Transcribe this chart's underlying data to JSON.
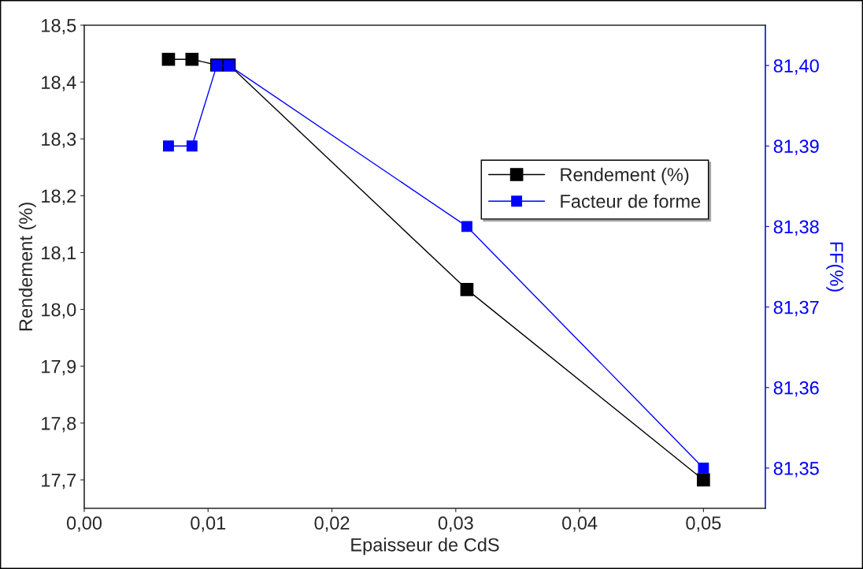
{
  "chart_data": {
    "type": "line",
    "xlabel": "Epaisseur de CdS",
    "ylabel": "Rendement (%)",
    "y2label": "FF(%)",
    "x": [
      0.0068,
      0.0087,
      0.0107,
      0.0117,
      0.0309,
      0.05
    ],
    "series": [
      {
        "name": "Rendement (%)",
        "color": "#000000",
        "values": [
          18.44,
          18.44,
          18.43,
          18.43,
          18.035,
          17.7
        ]
      },
      {
        "name": "Facteur de forme",
        "color": "#0000ff",
        "axis": "y2",
        "values": [
          81.39,
          81.39,
          81.4,
          81.4,
          81.38,
          81.35
        ]
      }
    ],
    "xlim": [
      0,
      0.055
    ],
    "xticks": [
      {
        "value": 0,
        "label": "0,00"
      },
      {
        "value": 0.01,
        "label": "0,01"
      },
      {
        "value": 0.02,
        "label": "0,02"
      },
      {
        "value": 0.03,
        "label": "0,03"
      },
      {
        "value": 0.04,
        "label": "0,04"
      },
      {
        "value": 0.05,
        "label": "0,05"
      }
    ],
    "ylim": [
      17.65,
      18.5
    ],
    "yticks": [
      {
        "value": 17.7,
        "label": "17,7"
      },
      {
        "value": 17.8,
        "label": "17,8"
      },
      {
        "value": 17.9,
        "label": "17,9"
      },
      {
        "value": 18.0,
        "label": "18,0"
      },
      {
        "value": 18.1,
        "label": "18,1"
      },
      {
        "value": 18.2,
        "label": "18,2"
      },
      {
        "value": 18.3,
        "label": "18,3"
      },
      {
        "value": 18.4,
        "label": "18,4"
      },
      {
        "value": 18.5,
        "label": "18,5"
      }
    ],
    "y2lim": [
      81.345,
      81.405
    ],
    "y2ticks": [
      {
        "value": 81.35,
        "label": "81,35"
      },
      {
        "value": 81.36,
        "label": "81,36"
      },
      {
        "value": 81.37,
        "label": "81,37"
      },
      {
        "value": 81.38,
        "label": "81,38"
      },
      {
        "value": 81.39,
        "label": "81,39"
      },
      {
        "value": 81.4,
        "label": "81,40"
      }
    ],
    "marker": "square",
    "line_style": "solid",
    "legend": "top right",
    "grid": false
  }
}
